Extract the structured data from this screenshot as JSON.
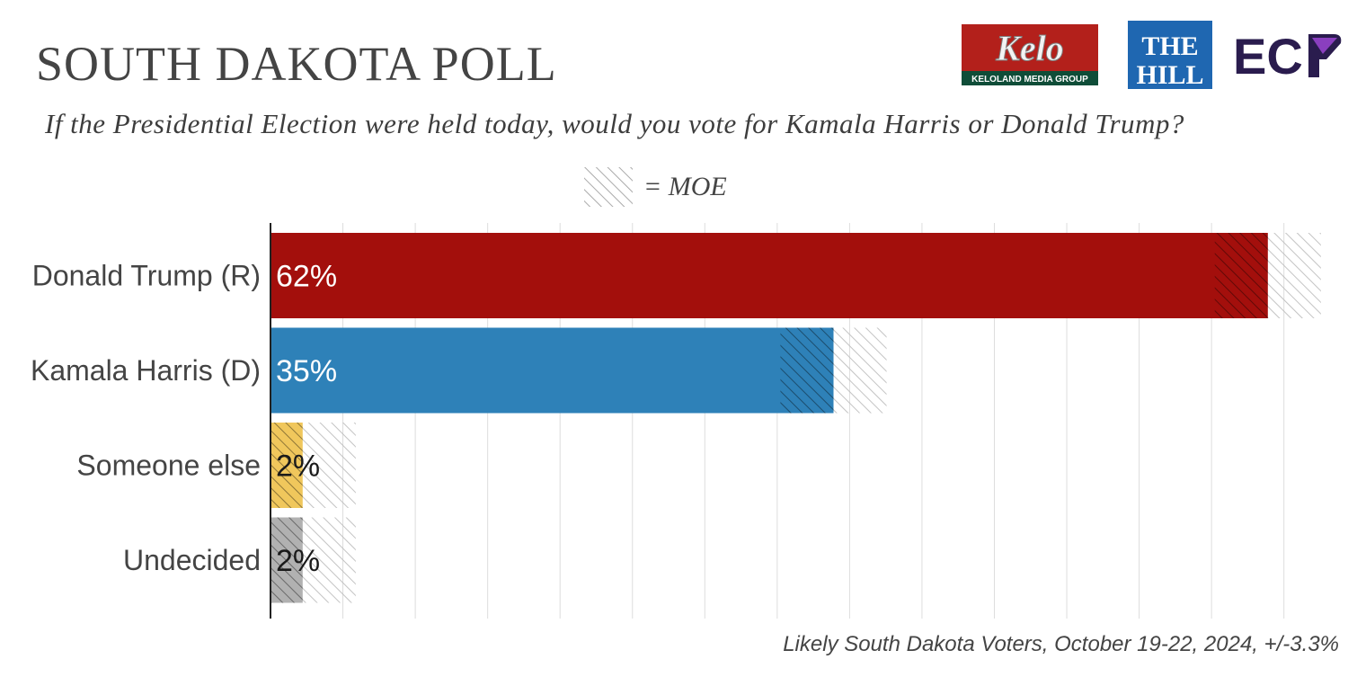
{
  "header": {
    "title": "SOUTH DAKOTA POLL",
    "subtitle": "If the Presidential Election were held today, would you vote for Kamala Harris or Donald Trump?"
  },
  "legend": {
    "label": "= MOE"
  },
  "logos": {
    "kelo": {
      "text": "Kelo",
      "subtext": "KELOLAND MEDIA GROUP"
    },
    "hill": {
      "text_top": "THE",
      "text_bottom": "HILL"
    },
    "ecp": {
      "text": "EC"
    }
  },
  "footer": {
    "source": "Likely South Dakota Voters, October 19-22, 2024, +/-3.3%"
  },
  "chart_data": {
    "type": "bar",
    "orientation": "horizontal",
    "categories": [
      "Donald Trump (R)",
      "Kamala Harris (D)",
      "Someone else",
      "Undecided"
    ],
    "values": [
      62,
      35,
      2,
      2
    ],
    "value_labels": [
      "62%",
      "35%",
      "2%",
      "2%"
    ],
    "moe": 3.3,
    "xlim": [
      0,
      73
    ],
    "grid": true,
    "colors": [
      "#a30f0c",
      "#2e81b8",
      "#f0c75c",
      "#b1b1b1"
    ],
    "label_colors": [
      "#ffffff",
      "#ffffff",
      "#1a1a1a",
      "#1a1a1a"
    ]
  }
}
